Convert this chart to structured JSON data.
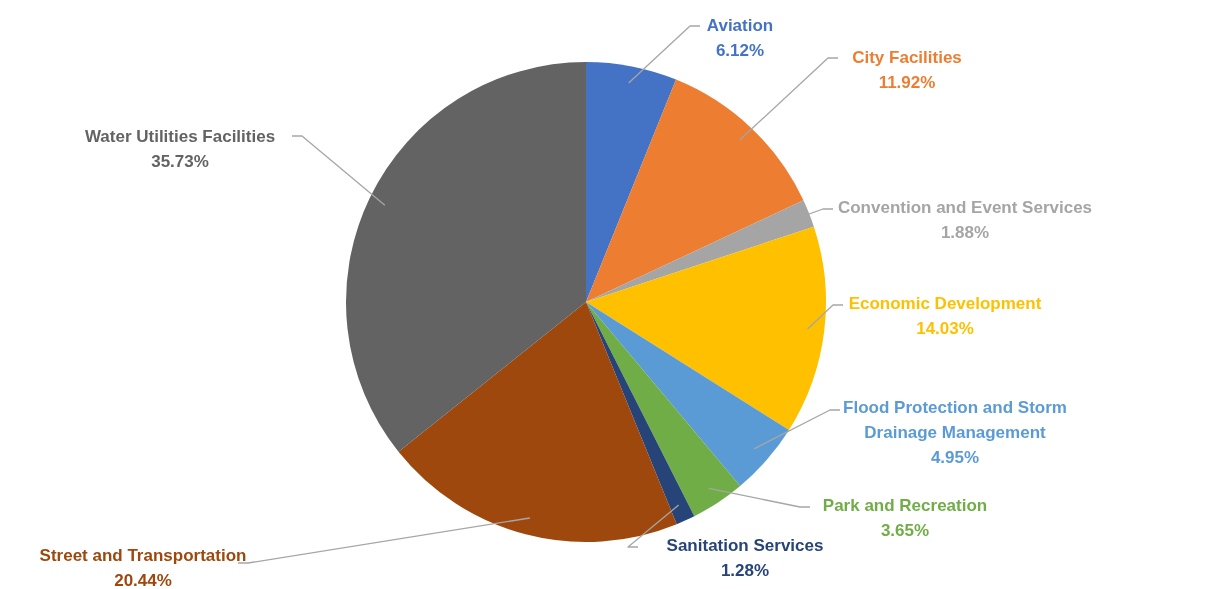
{
  "chart_data": {
    "type": "pie",
    "categories": [
      "Aviation",
      "City Facilities",
      "Convention and Event Services",
      "Economic Development",
      "Flood Protection and Storm Drainage Management",
      "Park and Recreation",
      "Sanitation Services",
      "Street and Transportation",
      "Water Utilities Facilities"
    ],
    "values": [
      6.12,
      11.92,
      1.88,
      14.03,
      4.95,
      3.65,
      1.28,
      20.44,
      35.73
    ],
    "value_labels": [
      "6.12%",
      "11.92%",
      "1.88%",
      "14.03%",
      "4.95%",
      "3.65%",
      "1.28%",
      "20.44%",
      "35.73%"
    ],
    "colors": [
      "#4472c4",
      "#ed7d31",
      "#a5a5a5",
      "#ffc000",
      "#5b9bd5",
      "#70ad47",
      "#264478",
      "#9e480e",
      "#636363"
    ],
    "legend": false
  }
}
